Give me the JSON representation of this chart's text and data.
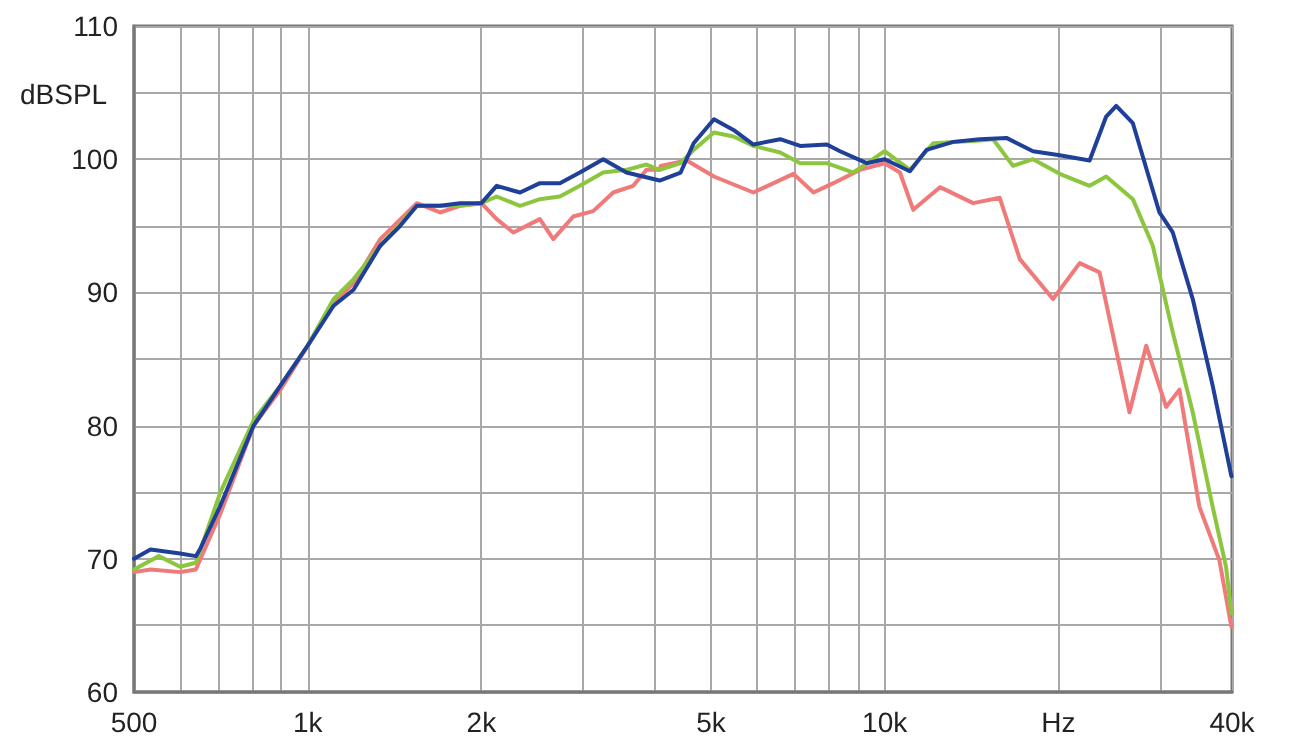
{
  "chart_data": {
    "type": "line",
    "ylabel": "dBSPL",
    "log": "x",
    "grid": true,
    "marker": "none",
    "line_style": "solid",
    "xlim": [
      500,
      40000
    ],
    "xticks": [
      500,
      {
        "value": 600,
        "label": null
      },
      {
        "value": 700,
        "label": null
      },
      {
        "value": 800,
        "label": null
      },
      {
        "value": 900,
        "label": null
      },
      {
        "value": 1000,
        "label": "1k"
      },
      {
        "value": 2000,
        "label": "2k"
      },
      {
        "value": 3000,
        "label": null
      },
      {
        "value": 4000,
        "label": null
      },
      {
        "value": 5000,
        "label": "5k"
      },
      {
        "value": 6000,
        "label": null
      },
      {
        "value": 7000,
        "label": null
      },
      {
        "value": 8000,
        "label": null
      },
      {
        "value": 9000,
        "label": null
      },
      {
        "value": 10000,
        "label": "10k"
      },
      {
        "value": 20000,
        "label": "Hz"
      },
      {
        "value": 30000,
        "label": null
      },
      {
        "value": 40000,
        "label": "40k"
      }
    ],
    "ylim": [
      60,
      110
    ],
    "yticks": [
      60,
      {
        "value": 65,
        "label": null
      },
      70,
      {
        "value": 75,
        "label": null
      },
      80,
      {
        "value": 85,
        "label": null
      },
      90,
      {
        "value": 95,
        "label": null
      },
      100,
      {
        "value": 105,
        "label": null
      },
      110
    ],
    "series": [
      {
        "color": "#f07a7a",
        "x": [
          500,
          534,
          601,
          640,
          652,
          706,
          806,
          897,
          1000,
          1109,
          1201,
          1336,
          1546,
          1696,
          1837,
          2000,
          2126,
          2272,
          2526,
          2665,
          2886,
          3125,
          3385,
          3665,
          3865,
          4075,
          4090,
          4540,
          5060,
          5923,
          6950,
          7530,
          8150,
          9060,
          10000,
          10630,
          11210,
          12470,
          14240,
          15830,
          17150,
          19580,
          21780,
          23580,
          26570,
          28400,
          30750,
          32430,
          35120,
          38030,
          39900
        ],
        "values": [
          69,
          69.2,
          69,
          69.2,
          70,
          73.4,
          80,
          82.7,
          86,
          89.2,
          90.7,
          94,
          96.7,
          96,
          96.5,
          96.7,
          95.5,
          94.5,
          95.5,
          94,
          95.7,
          96.1,
          97.5,
          98,
          99.2,
          99.2,
          99.5,
          99.9,
          98.7,
          97.5,
          98.9,
          97.5,
          98.2,
          99.2,
          99.7,
          99,
          96.2,
          97.9,
          96.7,
          97.1,
          92.5,
          89.5,
          92.2,
          91.5,
          81,
          86,
          81.4,
          82.7,
          73.9,
          69.9,
          64.9
        ]
      },
      {
        "color": "#8cc63f",
        "x": [
          500,
          552,
          601,
          640,
          706,
          806,
          897,
          1000,
          1109,
          1201,
          1336,
          1546,
          1837,
          2000,
          2126,
          2334,
          2526,
          2736,
          2963,
          3252,
          3568,
          3865,
          4075,
          4090,
          4430,
          4666,
          5060,
          5470,
          5923,
          6590,
          7140,
          7940,
          8830,
          10000,
          11060,
          12140,
          14620,
          15420,
          16690,
          18080,
          20110,
          22660,
          24210,
          26930,
          29160,
          31580,
          34200,
          37030,
          39060,
          39900
        ],
        "values": [
          69.2,
          70.2,
          69.4,
          69.7,
          75,
          80.4,
          83,
          86,
          89.5,
          91,
          93.5,
          96.5,
          96.5,
          96.7,
          97.2,
          96.5,
          97,
          97.2,
          98,
          99,
          99.2,
          99.6,
          99.2,
          99.2,
          99.7,
          100.7,
          102,
          101.7,
          101,
          100.5,
          99.7,
          99.7,
          99,
          100.6,
          99.2,
          101.2,
          101.4,
          101.5,
          99.5,
          100,
          98.9,
          98,
          98.7,
          97,
          93.5,
          87,
          81,
          73.9,
          69.4,
          65.9
        ]
      },
      {
        "color": "#1f3f99",
        "x": [
          500,
          534,
          601,
          640,
          652,
          706,
          806,
          897,
          1000,
          1109,
          1201,
          1336,
          1447,
          1546,
          1696,
          1837,
          2000,
          2126,
          2334,
          2526,
          2736,
          2963,
          3252,
          3568,
          4075,
          4430,
          4666,
          5060,
          5470,
          5923,
          6590,
          7140,
          7940,
          8370,
          9310,
          10000,
          11060,
          11820,
          13150,
          14620,
          16260,
          18080,
          20110,
          22660,
          24210,
          25200,
          26930,
          29940,
          31580,
          34200,
          37030,
          39900
        ],
        "values": [
          70,
          70.7,
          70.4,
          70.2,
          70.8,
          74,
          80,
          83,
          86,
          89,
          90.2,
          93.5,
          95,
          96.5,
          96.5,
          96.7,
          96.7,
          98,
          97.5,
          98.2,
          98.2,
          99,
          100,
          99,
          98.4,
          99,
          101.2,
          103,
          102.2,
          101.1,
          101.5,
          101,
          101.1,
          100.6,
          99.7,
          100,
          99.1,
          100.7,
          101.3,
          101.5,
          101.6,
          100.6,
          100.3,
          99.9,
          103.2,
          104,
          102.7,
          96,
          94.5,
          89.5,
          83,
          76.2
        ]
      }
    ]
  }
}
